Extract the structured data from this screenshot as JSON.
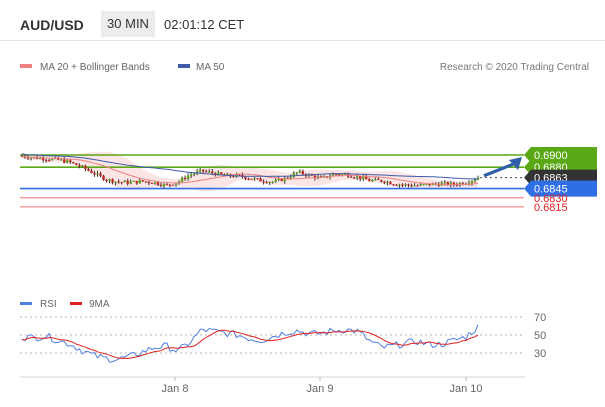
{
  "header": {
    "pair": "AUD/USD",
    "timeframe": "30 MIN",
    "time": "02:01:12 CET"
  },
  "legend": {
    "bb_label": "MA 20 + Bollinger Bands",
    "ma50_label": "MA 50",
    "credit": "Research © 2020 Trading Central",
    "bb_color": "#f08080",
    "ma50_color": "#3d5aa8"
  },
  "osc_legend": {
    "rsi_label": "RSI",
    "ma_label": "9MA",
    "rsi_color": "#4f7fdf",
    "ma_color": "#e02020"
  },
  "levels": [
    {
      "value": "0.6900",
      "style": "green"
    },
    {
      "value": "0.6880",
      "style": "green"
    },
    {
      "value": "0.6863",
      "style": "dark"
    },
    {
      "value": "0.6845",
      "style": "blue"
    },
    {
      "value": "0.6830",
      "style": "red"
    },
    {
      "value": "0.6815",
      "style": "red"
    }
  ],
  "chart_data": {
    "type": "candlestick",
    "instrument": "AUD/USD",
    "interval": "30 MIN",
    "last_price": 0.6863,
    "ylim": [
      0.681,
      0.6912
    ],
    "x_ticks": [
      "Jan 8",
      "Jan 9",
      "Jan 10"
    ],
    "key_levels": [
      0.69,
      0.688,
      0.6863,
      0.6845,
      0.683,
      0.6815
    ],
    "price_path": [
      0.6898,
      0.6896,
      0.6894,
      0.6892,
      0.6888,
      0.688,
      0.687,
      0.686,
      0.6856,
      0.6855,
      0.6857,
      0.6855,
      0.685,
      0.6856,
      0.6868,
      0.6874,
      0.687,
      0.6866,
      0.6866,
      0.6862,
      0.6858,
      0.6856,
      0.6862,
      0.6872,
      0.6866,
      0.6862,
      0.6869,
      0.6868,
      0.6864,
      0.6858,
      0.6858,
      0.6853,
      0.6851,
      0.685,
      0.6852,
      0.6853,
      0.6852,
      0.6855,
      0.6863
    ],
    "rsi": {
      "levels": [
        70,
        50,
        30
      ],
      "values": [
        48,
        47,
        49,
        44,
        40,
        33,
        27,
        24,
        23,
        26,
        31,
        36,
        38,
        32,
        42,
        56,
        54,
        52,
        50,
        46,
        44,
        49,
        53,
        55,
        51,
        52,
        55,
        56,
        54,
        43,
        36,
        38,
        41,
        43,
        39,
        40,
        44,
        48,
        59
      ]
    }
  }
}
